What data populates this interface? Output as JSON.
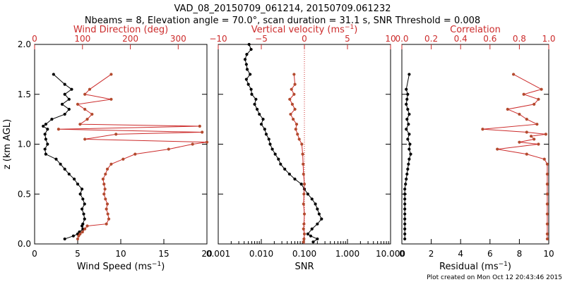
{
  "title": {
    "line1": "VAD_08_20150709_061214, 20150709.061232",
    "line2": "Nbeams = 8, Elevation angle = 70.0°, scan duration = 31.1 s, SNR Threshold = 0.008"
  },
  "footer": {
    "created": "Plot created on Mon Oct 12 20:43:46 2015"
  },
  "colors": {
    "black": "#000000",
    "red": "#cc2b2b",
    "brown": "#b34a2e"
  },
  "chart_data": [
    {
      "type": "line",
      "panel": "wind",
      "ylabel": "z (km AGL)",
      "ylim": [
        0,
        2
      ],
      "yticks": [
        "0.0",
        "0.5",
        "1.0",
        "1.5",
        "2.0"
      ],
      "ytick_values": [
        0,
        0.5,
        1.0,
        1.5,
        2.0
      ],
      "bottom_axis": {
        "label": "Wind Speed (ms",
        "label_sup": "−1",
        "label_end": ")",
        "lim": [
          0,
          20
        ],
        "ticks": [
          "0",
          "5",
          "10",
          "15",
          "20"
        ],
        "tick_values": [
          0,
          5,
          10,
          15,
          20
        ]
      },
      "top_axis": {
        "label": "Wind Direction (deg)",
        "lim": [
          0,
          360
        ],
        "ticks": [
          "0",
          "100",
          "200",
          "300"
        ],
        "tick_values": [
          0,
          100,
          200,
          300
        ]
      },
      "series": [
        {
          "name": "Wind Speed",
          "axis": "bottom",
          "color": "black",
          "y": [
            0.05,
            0.08,
            0.1,
            0.12,
            0.15,
            0.18,
            0.2,
            0.25,
            0.3,
            0.35,
            0.4,
            0.45,
            0.5,
            0.55,
            0.6,
            0.65,
            0.7,
            0.75,
            0.8,
            0.85,
            0.9,
            0.95,
            1.0,
            1.05,
            1.1,
            1.15,
            1.18,
            1.2,
            1.25,
            1.3,
            1.35,
            1.4,
            1.45,
            1.5,
            1.55,
            1.6,
            1.7
          ],
          "values": [
            3.5,
            4.5,
            5.0,
            5.2,
            5.6,
            5.5,
            5.6,
            5.8,
            5.7,
            5.5,
            5.8,
            5.6,
            5.3,
            5.5,
            5.0,
            4.6,
            4.0,
            3.5,
            3.0,
            2.5,
            1.3,
            1.2,
            1.5,
            1.3,
            1.2,
            1.5,
            1.0,
            1.3,
            2.0,
            3.5,
            4.0,
            3.2,
            4.0,
            3.5,
            4.3,
            3.5,
            2.2
          ]
        },
        {
          "name": "Wind Direction",
          "axis": "top",
          "color": "brown",
          "y": [
            0.05,
            0.08,
            0.1,
            0.12,
            0.15,
            0.18,
            0.2,
            0.25,
            0.3,
            0.35,
            0.4,
            0.45,
            0.5,
            0.55,
            0.6,
            0.65,
            0.7,
            0.75,
            0.8,
            0.85,
            0.9,
            0.95,
            1.0,
            1.02,
            1.05,
            1.1,
            1.12,
            1.15,
            1.18,
            1.2,
            1.25,
            1.3,
            1.35,
            1.4,
            1.45,
            1.5,
            1.55,
            1.7
          ],
          "values": [
            90,
            92,
            95,
            100,
            105,
            110,
            150,
            155,
            153,
            150,
            152,
            148,
            145,
            147,
            145,
            143,
            148,
            152,
            160,
            185,
            210,
            280,
            330,
            360,
            105,
            170,
            350,
            50,
            345,
            95,
            110,
            120,
            105,
            90,
            160,
            105,
            115,
            160
          ]
        }
      ]
    },
    {
      "type": "line",
      "panel": "snr",
      "bottom_axis": {
        "label": "SNR",
        "scale": "log",
        "lim": [
          0.001,
          10
        ],
        "ticks": [
          "0.001",
          "0.010",
          "0.100",
          "1.000",
          "10.000"
        ],
        "tick_values": [
          0.001,
          0.01,
          0.1,
          1,
          10
        ]
      },
      "top_axis": {
        "label": "Vertical velocity (ms",
        "label_sup": "−1",
        "label_end": ")",
        "lim": [
          -10,
          10
        ],
        "ticks": [
          "−10",
          "−5",
          "0",
          "5",
          "10"
        ],
        "tick_values": [
          -10,
          -5,
          0,
          5,
          10
        ]
      },
      "zero_line": 0,
      "series": [
        {
          "name": "SNR",
          "axis": "bottom",
          "color": "black",
          "y": [
            0.02,
            0.05,
            0.08,
            0.1,
            0.15,
            0.2,
            0.25,
            0.3,
            0.35,
            0.4,
            0.45,
            0.5,
            0.55,
            0.6,
            0.65,
            0.7,
            0.75,
            0.8,
            0.85,
            0.9,
            0.95,
            1.0,
            1.05,
            1.1,
            1.15,
            1.2,
            1.25,
            1.3,
            1.35,
            1.4,
            1.45,
            1.5,
            1.55,
            1.6,
            1.65,
            1.7,
            1.75,
            1.8,
            1.85,
            1.9,
            1.95,
            2.0
          ],
          "values": [
            0.16,
            0.2,
            0.14,
            0.12,
            0.15,
            0.2,
            0.25,
            0.22,
            0.2,
            0.18,
            0.15,
            0.12,
            0.1,
            0.085,
            0.06,
            0.045,
            0.035,
            0.028,
            0.025,
            0.021,
            0.018,
            0.016,
            0.015,
            0.013,
            0.012,
            0.01,
            0.011,
            0.009,
            0.008,
            0.007,
            0.0075,
            0.006,
            0.0058,
            0.005,
            0.0045,
            0.0055,
            0.0047,
            0.0045,
            0.0042,
            0.0046,
            0.0058,
            0.0052
          ]
        },
        {
          "name": "Vertical velocity",
          "axis": "top",
          "color": "brown",
          "y": [
            0.02,
            0.05,
            0.1,
            0.15,
            0.2,
            0.3,
            0.4,
            0.5,
            0.6,
            0.7,
            0.8,
            0.9,
            1.0,
            1.05,
            1.1,
            1.15,
            1.2,
            1.25,
            1.3,
            1.35,
            1.4,
            1.45,
            1.5,
            1.55,
            1.6,
            1.7
          ],
          "values": [
            -0.1,
            -0.05,
            0.0,
            -0.1,
            -0.05,
            0.0,
            -0.1,
            -0.05,
            0.0,
            -0.1,
            -0.15,
            -0.2,
            -0.3,
            -0.6,
            -0.8,
            -1.0,
            -0.9,
            -1.3,
            -1.6,
            -1.1,
            -1.4,
            -1.7,
            -1.2,
            -1.5,
            -1.1,
            -1.2
          ]
        }
      ]
    },
    {
      "type": "line",
      "panel": "residual",
      "bottom_axis": {
        "label": "Residual (ms",
        "label_sup": "−1",
        "label_end": ")",
        "lim": [
          0,
          10
        ],
        "ticks": [
          "0",
          "2",
          "4",
          "6",
          "8",
          "10"
        ],
        "tick_values": [
          0,
          2,
          4,
          6,
          8,
          10
        ]
      },
      "top_axis": {
        "label": "Correlation",
        "lim": [
          0,
          1
        ],
        "ticks": [
          "0.0",
          "0.2",
          "0.4",
          "0.6",
          "0.8",
          "1.0"
        ],
        "tick_values": [
          0,
          0.2,
          0.4,
          0.6,
          0.8,
          1.0
        ]
      },
      "series": [
        {
          "name": "Residual",
          "axis": "bottom",
          "color": "black",
          "y": [
            0.05,
            0.1,
            0.15,
            0.2,
            0.25,
            0.3,
            0.35,
            0.4,
            0.45,
            0.5,
            0.55,
            0.6,
            0.65,
            0.7,
            0.75,
            0.8,
            0.85,
            0.9,
            0.95,
            1.0,
            1.05,
            1.1,
            1.15,
            1.2,
            1.25,
            1.3,
            1.35,
            1.4,
            1.45,
            1.5,
            1.55,
            1.7
          ],
          "values": [
            0.2,
            0.2,
            0.2,
            0.2,
            0.2,
            0.2,
            0.2,
            0.2,
            0.2,
            0.2,
            0.2,
            0.25,
            0.3,
            0.35,
            0.4,
            0.45,
            0.5,
            0.6,
            0.5,
            0.55,
            0.4,
            0.5,
            0.3,
            0.45,
            0.35,
            0.5,
            0.4,
            0.3,
            0.35,
            0.4,
            0.3,
            0.5
          ]
        },
        {
          "name": "Correlation",
          "axis": "top",
          "color": "brown",
          "y": [
            0.05,
            0.1,
            0.2,
            0.3,
            0.4,
            0.5,
            0.6,
            0.7,
            0.8,
            0.85,
            0.9,
            0.95,
            1.0,
            1.02,
            1.05,
            1.08,
            1.1,
            1.12,
            1.15,
            1.2,
            1.25,
            1.3,
            1.35,
            1.4,
            1.45,
            1.5,
            1.55,
            1.7
          ],
          "values": [
            0.99,
            0.99,
            0.99,
            0.99,
            0.99,
            0.99,
            0.99,
            0.99,
            0.99,
            0.97,
            0.85,
            0.65,
            0.93,
            0.8,
            0.9,
            0.88,
            0.98,
            0.85,
            0.55,
            0.92,
            0.85,
            0.8,
            0.72,
            0.9,
            0.93,
            0.83,
            0.95,
            0.76
          ]
        }
      ]
    }
  ]
}
